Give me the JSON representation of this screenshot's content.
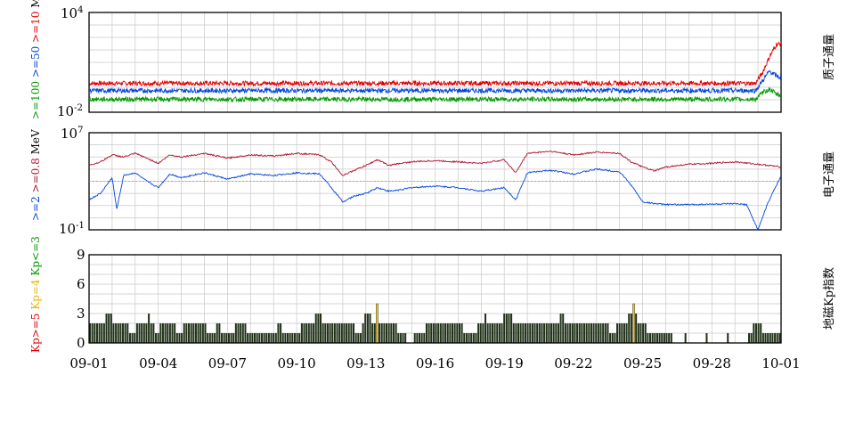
{
  "colors": {
    "red": "#e00000",
    "blue": "#0044dd",
    "green": "#009900",
    "dark_red": "#b0102a",
    "yellow": "#ffcc00",
    "bar": "#22331a",
    "grid": "#c8c8c8"
  },
  "chart_data": [
    {
      "type": "line",
      "name": "proton-flux",
      "ylabel_parts": [
        {
          "text": ">=100",
          "color": "green"
        },
        {
          "text": ">=50",
          "color": "blue"
        },
        {
          "text": ">=10",
          "color": "red"
        },
        {
          "text": "MeV",
          "color": "black"
        }
      ],
      "side_label": "质子通量",
      "y_scale": "log",
      "y_tick_labels": [
        {
          "base": "10",
          "exp": "4"
        },
        {
          "base": "10",
          "exp": "-2"
        }
      ],
      "ylim": [
        0.01,
        10000
      ],
      "xlim": [
        "09-01",
        "10-01"
      ],
      "series": [
        {
          "color": "red",
          "values": [
            [
              0,
              0.55
            ],
            [
              28.9,
              0.55
            ],
            [
              29.2,
              2.5
            ],
            [
              29.5,
              22
            ],
            [
              29.8,
              120
            ],
            [
              30,
              130
            ]
          ]
        },
        {
          "color": "blue",
          "values": [
            [
              0,
              0.2
            ],
            [
              28.9,
              0.2
            ],
            [
              29.2,
              0.8
            ],
            [
              29.5,
              3
            ],
            [
              29.8,
              1.5
            ],
            [
              30,
              1.2
            ]
          ]
        },
        {
          "color": "green",
          "values": [
            [
              0,
              0.06
            ],
            [
              28.9,
              0.06
            ],
            [
              29.2,
              0.15
            ],
            [
              29.5,
              0.25
            ],
            [
              29.8,
              0.12
            ],
            [
              30,
              0.1
            ]
          ]
        }
      ]
    },
    {
      "type": "line",
      "name": "electron-flux",
      "ylabel_parts": [
        {
          "text": ">=2",
          "color": "blue"
        },
        {
          "text": ">=0.8",
          "color": "dark_red"
        },
        {
          "text": "MeV",
          "color": "black"
        }
      ],
      "side_label": "电子通量",
      "y_scale": "log",
      "y_tick_labels": [
        {
          "base": "10",
          "exp": "7"
        },
        {
          "base": "10",
          "exp": "-1"
        }
      ],
      "ylim": [
        0.1,
        10000000
      ],
      "xlim": [
        "09-01",
        "10-01"
      ],
      "series": [
        {
          "color": "dark_red",
          "values": [
            [
              0,
              20000
            ],
            [
              0.5,
              40000
            ],
            [
              1,
              150000
            ],
            [
              1.5,
              100000
            ],
            [
              2,
              200000
            ],
            [
              2.5,
              80000
            ],
            [
              3,
              30000
            ],
            [
              3.5,
              150000
            ],
            [
              4,
              100000
            ],
            [
              5,
              200000
            ],
            [
              6,
              80000
            ],
            [
              7,
              150000
            ],
            [
              8,
              120000
            ],
            [
              9,
              200000
            ],
            [
              10,
              150000
            ],
            [
              10.5,
              40000
            ],
            [
              11,
              3000
            ],
            [
              11.5,
              8000
            ],
            [
              12,
              20000
            ],
            [
              12.5,
              60000
            ],
            [
              13,
              20000
            ],
            [
              13.5,
              30000
            ],
            [
              14,
              40000
            ],
            [
              15,
              50000
            ],
            [
              16,
              40000
            ],
            [
              17,
              30000
            ],
            [
              18,
              60000
            ],
            [
              18.5,
              5000
            ],
            [
              19,
              200000
            ],
            [
              20,
              300000
            ],
            [
              21,
              150000
            ],
            [
              22,
              250000
            ],
            [
              23,
              200000
            ],
            [
              23.5,
              40000
            ],
            [
              24,
              15000
            ],
            [
              24.5,
              7000
            ],
            [
              25,
              15000
            ],
            [
              26,
              25000
            ],
            [
              27,
              30000
            ],
            [
              28,
              40000
            ],
            [
              29,
              25000
            ],
            [
              29.5,
              20000
            ],
            [
              30,
              15000
            ]
          ]
        },
        {
          "color": "blue",
          "values": [
            [
              0,
              30
            ],
            [
              0.5,
              100
            ],
            [
              1,
              2000
            ],
            [
              1.2,
              5
            ],
            [
              1.5,
              3000
            ],
            [
              2,
              5000
            ],
            [
              2.5,
              1000
            ],
            [
              3,
              300
            ],
            [
              3.5,
              4000
            ],
            [
              4,
              2000
            ],
            [
              5,
              5000
            ],
            [
              6,
              1500
            ],
            [
              7,
              4000
            ],
            [
              8,
              3000
            ],
            [
              9,
              5000
            ],
            [
              10,
              4000
            ],
            [
              10.5,
              300
            ],
            [
              11,
              20
            ],
            [
              11.5,
              60
            ],
            [
              12,
              100
            ],
            [
              12.5,
              300
            ],
            [
              13,
              150
            ],
            [
              13.5,
              200
            ],
            [
              14,
              300
            ],
            [
              15,
              400
            ],
            [
              16,
              300
            ],
            [
              17,
              150
            ],
            [
              18,
              300
            ],
            [
              18.5,
              30
            ],
            [
              19,
              5000
            ],
            [
              20,
              8000
            ],
            [
              21,
              4000
            ],
            [
              22,
              10000
            ],
            [
              23,
              6000
            ],
            [
              23.5,
              500
            ],
            [
              24,
              20
            ],
            [
              24.5,
              15
            ],
            [
              25,
              12
            ],
            [
              26,
              12
            ],
            [
              27,
              13
            ],
            [
              28,
              14
            ],
            [
              28.5,
              12
            ],
            [
              29,
              0.1
            ],
            [
              29.4,
              12
            ],
            [
              29.7,
              200
            ],
            [
              30,
              3000
            ]
          ]
        }
      ]
    },
    {
      "type": "bar",
      "name": "kp-index",
      "ylabel_parts": [
        {
          "text": "Kp>=5",
          "color": "red"
        },
        {
          "text": "Kp=4",
          "color": "yellow"
        },
        {
          "text": "Kp<=3",
          "color": "green"
        }
      ],
      "side_label": "地磁Kp指数",
      "ylim": [
        0,
        9
      ],
      "y_tick_labels": [
        "9",
        "6",
        "3",
        "0"
      ],
      "x_tick_labels": [
        "09-01",
        "09-04",
        "09-07",
        "09-10",
        "09-13",
        "09-16",
        "09-19",
        "09-22",
        "09-25",
        "09-28",
        "10-01"
      ],
      "bar_interval_hours": 3,
      "kp_values": [
        2,
        2,
        2,
        2,
        2,
        2,
        2,
        3,
        3,
        3,
        2,
        2,
        2,
        2,
        2,
        2,
        2,
        1,
        1,
        1,
        2,
        2,
        2,
        2,
        2,
        3,
        2,
        2,
        1,
        1,
        2,
        2,
        2,
        2,
        2,
        2,
        2,
        1,
        1,
        1,
        2,
        2,
        2,
        2,
        2,
        2,
        2,
        2,
        2,
        2,
        1,
        1,
        1,
        1,
        2,
        2,
        1,
        1,
        1,
        1,
        1,
        1,
        2,
        2,
        2,
        2,
        2,
        1,
        1,
        1,
        1,
        1,
        1,
        1,
        1,
        1,
        1,
        1,
        1,
        1,
        2,
        2,
        1,
        1,
        1,
        1,
        1,
        1,
        1,
        1,
        2,
        2,
        2,
        2,
        2,
        2,
        3,
        3,
        3,
        2,
        2,
        2,
        2,
        2,
        2,
        2,
        2,
        2,
        2,
        2,
        2,
        2,
        2,
        1,
        1,
        1,
        2,
        3,
        3,
        3,
        2,
        2,
        4,
        2,
        2,
        2,
        2,
        2,
        2,
        2,
        2,
        1,
        1,
        1,
        1,
        0,
        0,
        0,
        1,
        1,
        1,
        1,
        1,
        2,
        2,
        2,
        2,
        2,
        2,
        2,
        2,
        2,
        2,
        2,
        2,
        2,
        2,
        2,
        2,
        1,
        1,
        1,
        1,
        1,
        1,
        2,
        2,
        2,
        3,
        2,
        2,
        2,
        2,
        2,
        2,
        2,
        3,
        3,
        3,
        3,
        2,
        2,
        2,
        2,
        2,
        2,
        2,
        2,
        2,
        2,
        2,
        2,
        2,
        2,
        2,
        2,
        2,
        2,
        2,
        2,
        3,
        3,
        2,
        2,
        2,
        2,
        2,
        2,
        2,
        2,
        2,
        2,
        2,
        2,
        2,
        2,
        2,
        2,
        2,
        2,
        2,
        1,
        1,
        1,
        2,
        2,
        2,
        2,
        2,
        3,
        3,
        4,
        3,
        2,
        2,
        2,
        2,
        1,
        1,
        1,
        1,
        1,
        1,
        1,
        1,
        1,
        1,
        1,
        0,
        0,
        0,
        0,
        0,
        1,
        0,
        0,
        0,
        0,
        0,
        0,
        0,
        0,
        1,
        0,
        0,
        0,
        0,
        0,
        0,
        0,
        0,
        1,
        0,
        0,
        0,
        0,
        0,
        0,
        0,
        0,
        1,
        1,
        2,
        2,
        2,
        2,
        1,
        1,
        1,
        1,
        1,
        1,
        1,
        1
      ]
    }
  ]
}
